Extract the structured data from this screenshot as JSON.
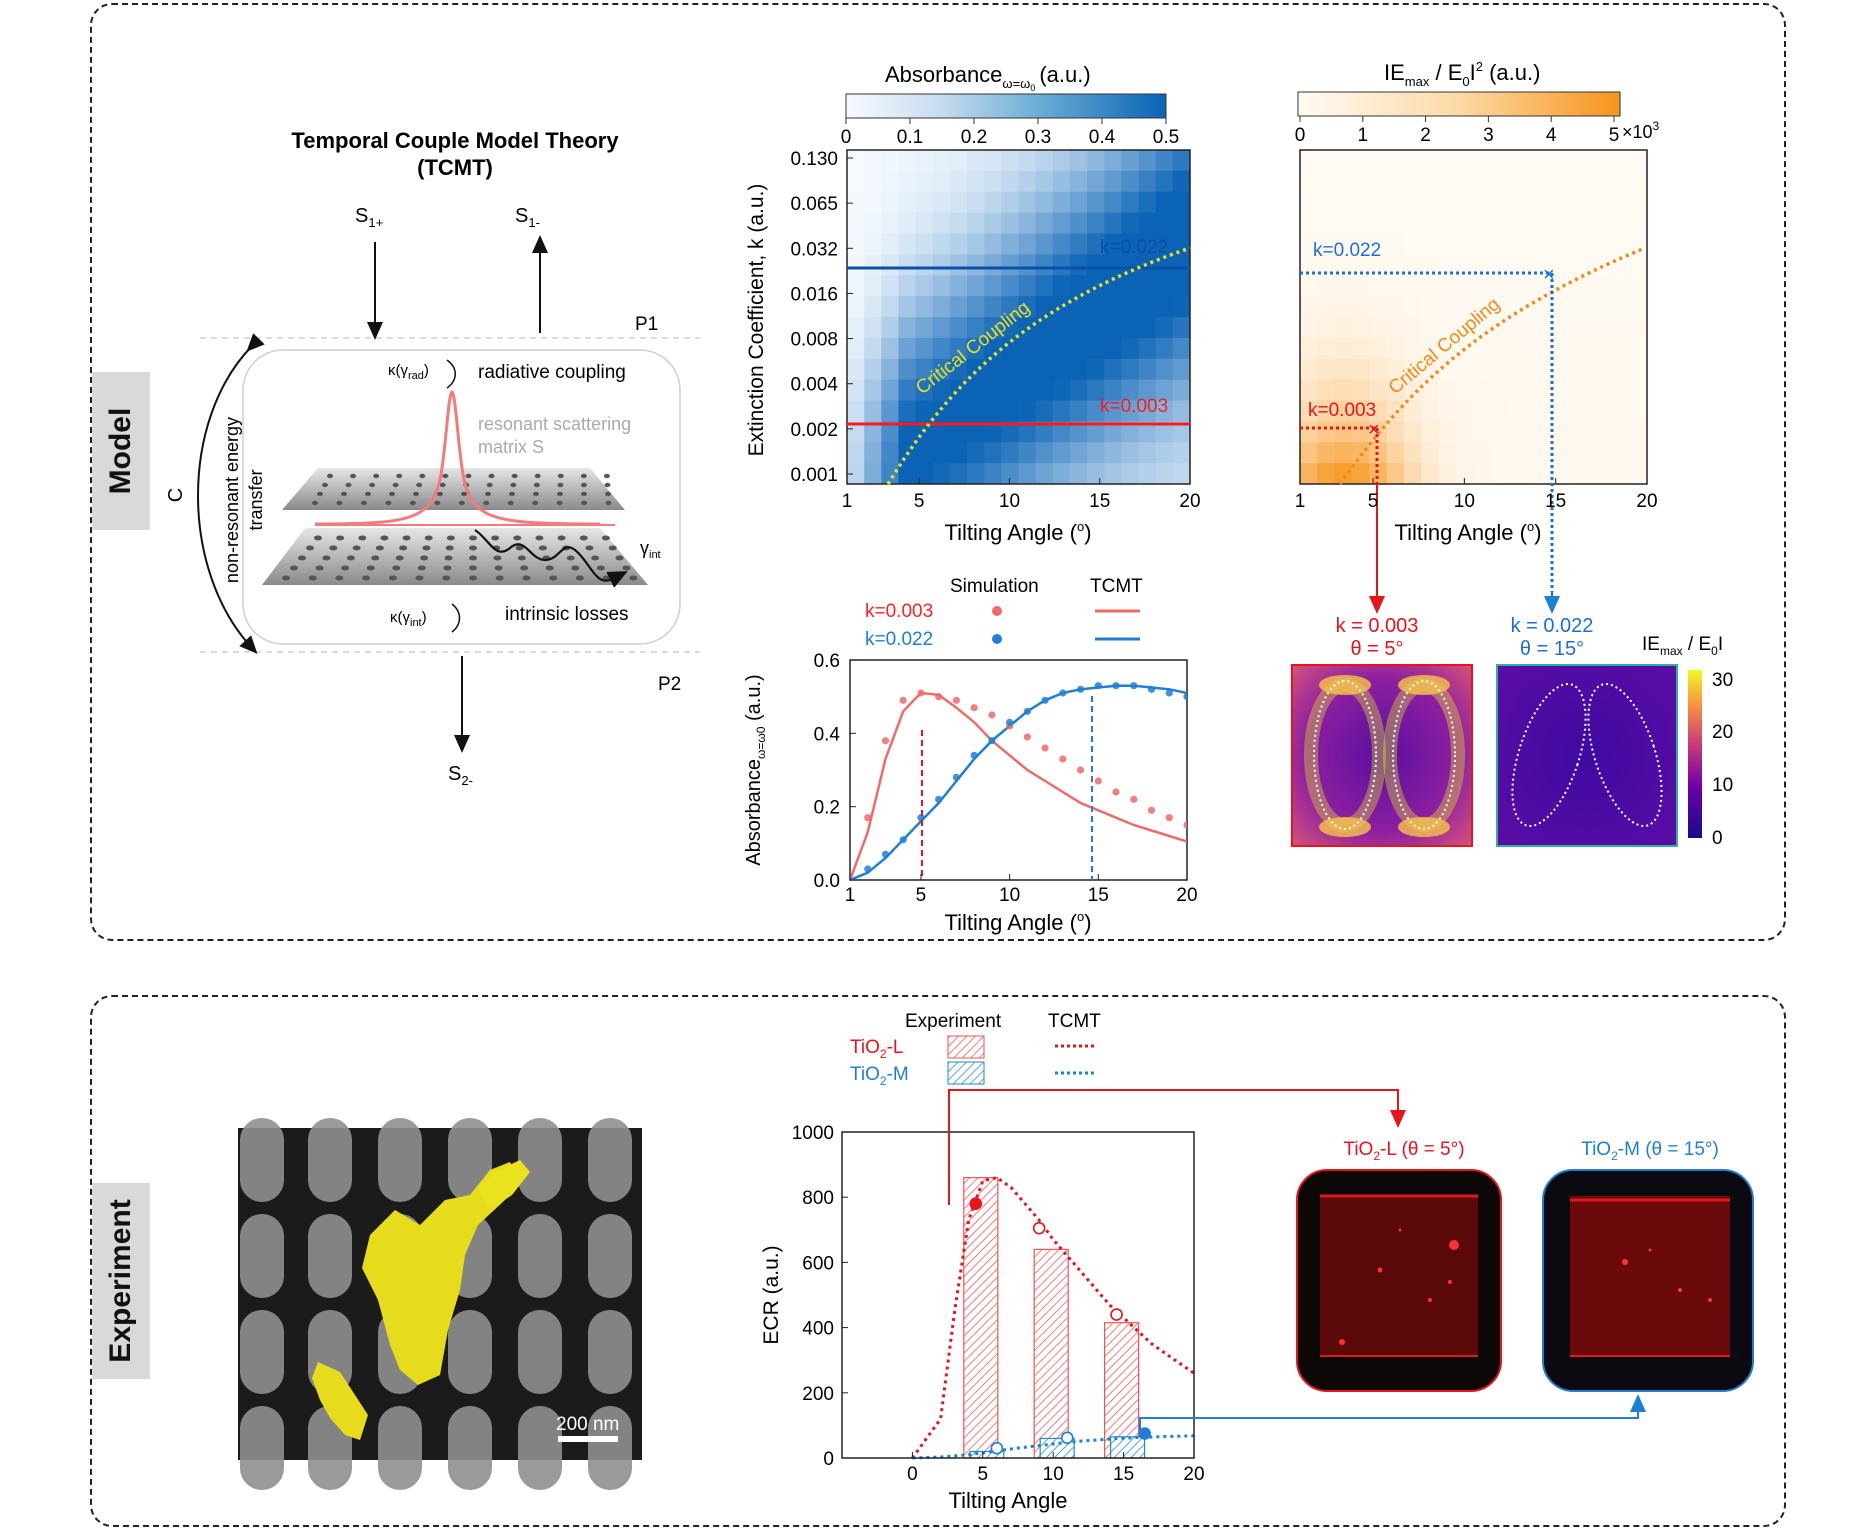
{
  "model": {
    "side_label": "Model",
    "tcmt_diagram": {
      "title_line1": "Temporal Couple  Model Theory",
      "title_line2": "(TCMT)",
      "s1_plus": "S",
      "s1_plus_sub": "1+",
      "s1_minus": "S",
      "s1_minus_sub": "1-",
      "s2_minus": "S",
      "s2_minus_sub": "2-",
      "p1": "P1",
      "p2": "P2",
      "c_label": "C",
      "nonresonant_line1": "non-resonant energy",
      "nonresonant_line2": "transfer",
      "kappa_rad_pre": "κ(γ",
      "kappa_rad_sub": "rad",
      "kappa_rad_post": ")",
      "radiative": "radiative coupling",
      "resonant_line1": "resonant scattering",
      "resonant_line2": "matrix S",
      "gamma_int": "γ",
      "gamma_int_sub": "int",
      "kappa_int_pre": "κ(γ",
      "kappa_int_sub": "int",
      "kappa_int_post": ")",
      "intrinsic": "intrinsic losses"
    },
    "absorbance_map": {
      "colorbar_title": "Absorbance",
      "colorbar_title_sub": "ω=ω",
      "colorbar_title_sub2": "0",
      "colorbar_unit": "(a.u.)",
      "colorbar_ticks": [
        "0",
        "0.1",
        "0.2",
        "0.3",
        "0.4",
        "0.5"
      ],
      "ylabel": "Extinction Coefficient, k (a.u.)",
      "xlabel": "Tilting Angle (",
      "xlabel_deg": "o",
      "xlabel_end": ")",
      "y_ticks": [
        "0.130",
        "0.065",
        "0.032",
        "0.016",
        "0.008",
        "0.004",
        "0.002",
        "0.001"
      ],
      "x_ticks": [
        "1",
        "5",
        "10",
        "15",
        "20"
      ],
      "line_high": "k=0.022",
      "line_low": "k=0.003",
      "curve_label": "Critical Coupling",
      "colors": {
        "blue_dark": "#0a63b5",
        "red": "#ff1a1a",
        "curve": "#e8e020"
      }
    },
    "field_map": {
      "colorbar_title_pre": "IE",
      "colorbar_title_sub": "max",
      "colorbar_title_mid": " / E",
      "colorbar_title_sub2": "0",
      "colorbar_title_post": "I",
      "colorbar_title_sup": "2",
      "colorbar_unit": " (a.u.)",
      "colorbar_ticks": [
        "0",
        "1",
        "2",
        "3",
        "4",
        "5"
      ],
      "colorbar_mult": "×10",
      "colorbar_mult_sup": "3",
      "x_ticks": [
        "1",
        "5",
        "10",
        "15",
        "20"
      ],
      "xlabel": "Tilting Angle (",
      "xlabel_deg": "o",
      "xlabel_end": ")",
      "k_high": "k=0.022",
      "k_low": "k=0.003",
      "curve_label": "Critical Coupling",
      "colors": {
        "blue": "#1f6fd1",
        "red": "#e8141c",
        "curve": "#f08a1a"
      }
    },
    "absorbance_plot": {
      "legend_sim": "Simulation",
      "legend_tcmt": "TCMT",
      "legend_k1": "k=0.003",
      "legend_k2": "k=0.022",
      "ylabel": "Absorbance",
      "ylabel_sub": "ω=ω0",
      "ylabel_unit": " (a.u.)",
      "xlabel": "Tilting Angle (",
      "xlabel_deg": "o",
      "xlabel_end": ")",
      "x_ticks": [
        "1",
        "5",
        "10",
        "15",
        "20"
      ],
      "y_ticks": [
        "0.0",
        "0.2",
        "0.4",
        "0.6"
      ]
    },
    "near_field": {
      "left_title1": "k = 0.003",
      "left_title2": "θ = 5°",
      "right_title1": "k = 0.022",
      "right_title2": "θ = 15°",
      "cb_title_pre": "IE",
      "cb_title_sub": "max",
      "cb_title_post": " / E",
      "cb_title_sub2": "0",
      "cb_title_end": "I",
      "cb_ticks": [
        "30",
        "20",
        "10",
        "0"
      ]
    }
  },
  "experiment": {
    "side_label": "Experiment",
    "sem": {
      "scale_bar": "200 nm"
    },
    "ecr_plot": {
      "legend_exp": "Experiment",
      "legend_tcmt": "TCMT",
      "legend_l_pre": "TiO",
      "legend_l_sub": "2",
      "legend_l_post": "-L",
      "legend_m_pre": "TiO",
      "legend_m_sub": "2",
      "legend_m_post": "-M",
      "ylabel": "ECR (a.u.)",
      "xlabel": "Tilting Angle",
      "x_ticks": [
        "0",
        "5",
        "10",
        "15",
        "20"
      ],
      "y_ticks": [
        "0",
        "200",
        "400",
        "600",
        "800",
        "1000"
      ]
    },
    "fluor_left": {
      "pre": "TiO",
      "sub": "2",
      "post": "-L (θ = 5°)"
    },
    "fluor_right": {
      "pre": "TiO",
      "sub": "2",
      "post": "-M (θ = 15°)"
    }
  },
  "chart_data": [
    {
      "type": "line",
      "title": "",
      "xlabel": "Tilting Angle (o)",
      "ylabel": "Absorbance (a.u.)",
      "xlim": [
        1,
        20
      ],
      "ylim": [
        0,
        0.6
      ],
      "series": [
        {
          "name": "k=0.003 TCMT",
          "x": [
            1,
            2,
            3,
            4,
            5,
            6,
            7,
            8,
            9,
            10,
            11,
            12,
            13,
            14,
            15,
            16,
            17,
            18,
            19,
            20
          ],
          "y": [
            0.0,
            0.13,
            0.33,
            0.46,
            0.51,
            0.505,
            0.47,
            0.43,
            0.38,
            0.34,
            0.3,
            0.27,
            0.24,
            0.21,
            0.19,
            0.17,
            0.15,
            0.135,
            0.12,
            0.105
          ]
        },
        {
          "name": "k=0.022 TCMT",
          "x": [
            1,
            2,
            3,
            4,
            5,
            6,
            7,
            8,
            9,
            10,
            11,
            12,
            13,
            14,
            15,
            16,
            17,
            18,
            19,
            20
          ],
          "y": [
            0.0,
            0.02,
            0.06,
            0.11,
            0.16,
            0.21,
            0.27,
            0.33,
            0.38,
            0.42,
            0.46,
            0.49,
            0.51,
            0.52,
            0.525,
            0.53,
            0.53,
            0.525,
            0.52,
            0.51
          ]
        },
        {
          "name": "k=0.003 Simulation",
          "x": [
            2,
            3,
            4,
            5,
            6,
            7,
            8,
            9,
            10,
            11,
            12,
            13,
            14,
            15,
            16,
            17,
            18,
            19,
            20
          ],
          "y": [
            0.17,
            0.38,
            0.49,
            0.51,
            0.5,
            0.49,
            0.47,
            0.45,
            0.42,
            0.39,
            0.36,
            0.33,
            0.3,
            0.27,
            0.24,
            0.22,
            0.19,
            0.17,
            0.15
          ]
        },
        {
          "name": "k=0.022 Simulation",
          "x": [
            2,
            3,
            4,
            5,
            6,
            7,
            8,
            9,
            10,
            11,
            12,
            13,
            14,
            15,
            16,
            17,
            18,
            19,
            20
          ],
          "y": [
            0.03,
            0.07,
            0.11,
            0.17,
            0.22,
            0.28,
            0.34,
            0.38,
            0.43,
            0.46,
            0.49,
            0.51,
            0.52,
            0.53,
            0.53,
            0.53,
            0.52,
            0.51,
            0.5
          ]
        }
      ]
    },
    {
      "type": "bar",
      "title": "",
      "xlabel": "Tilting Angle",
      "ylabel": "ECR (a.u.)",
      "xlim": [
        -5,
        20
      ],
      "ylim": [
        0,
        1000
      ],
      "series": [
        {
          "name": "TiO2-L Experiment",
          "x": [
            5,
            10,
            15
          ],
          "values": [
            860,
            640,
            415
          ]
        },
        {
          "name": "TiO2-M Experiment",
          "x": [
            5,
            10,
            15
          ],
          "values": [
            20,
            60,
            65
          ]
        },
        {
          "name": "TiO2-L TCMT",
          "x": [
            0,
            2,
            3,
            4,
            5,
            6,
            7,
            8,
            9,
            10,
            11,
            12,
            13,
            14,
            15,
            16,
            17,
            18,
            19,
            20
          ],
          "y": [
            0,
            120,
            450,
            730,
            850,
            860,
            830,
            780,
            730,
            670,
            620,
            570,
            520,
            470,
            430,
            390,
            350,
            320,
            290,
            260
          ]
        },
        {
          "name": "TiO2-M TCMT",
          "x": [
            0,
            2,
            4,
            6,
            8,
            10,
            12,
            14,
            16,
            18,
            20
          ],
          "y": [
            0,
            3,
            10,
            22,
            33,
            43,
            52,
            58,
            63,
            66,
            68
          ]
        }
      ],
      "markers": [
        {
          "series": "TiO2-L",
          "x": [
            4.5,
            9,
            14.5
          ],
          "y": [
            780,
            705,
            440
          ]
        },
        {
          "series": "TiO2-M",
          "x": [
            6,
            11,
            16.5
          ],
          "y": [
            30,
            62,
            75
          ]
        }
      ]
    }
  ]
}
